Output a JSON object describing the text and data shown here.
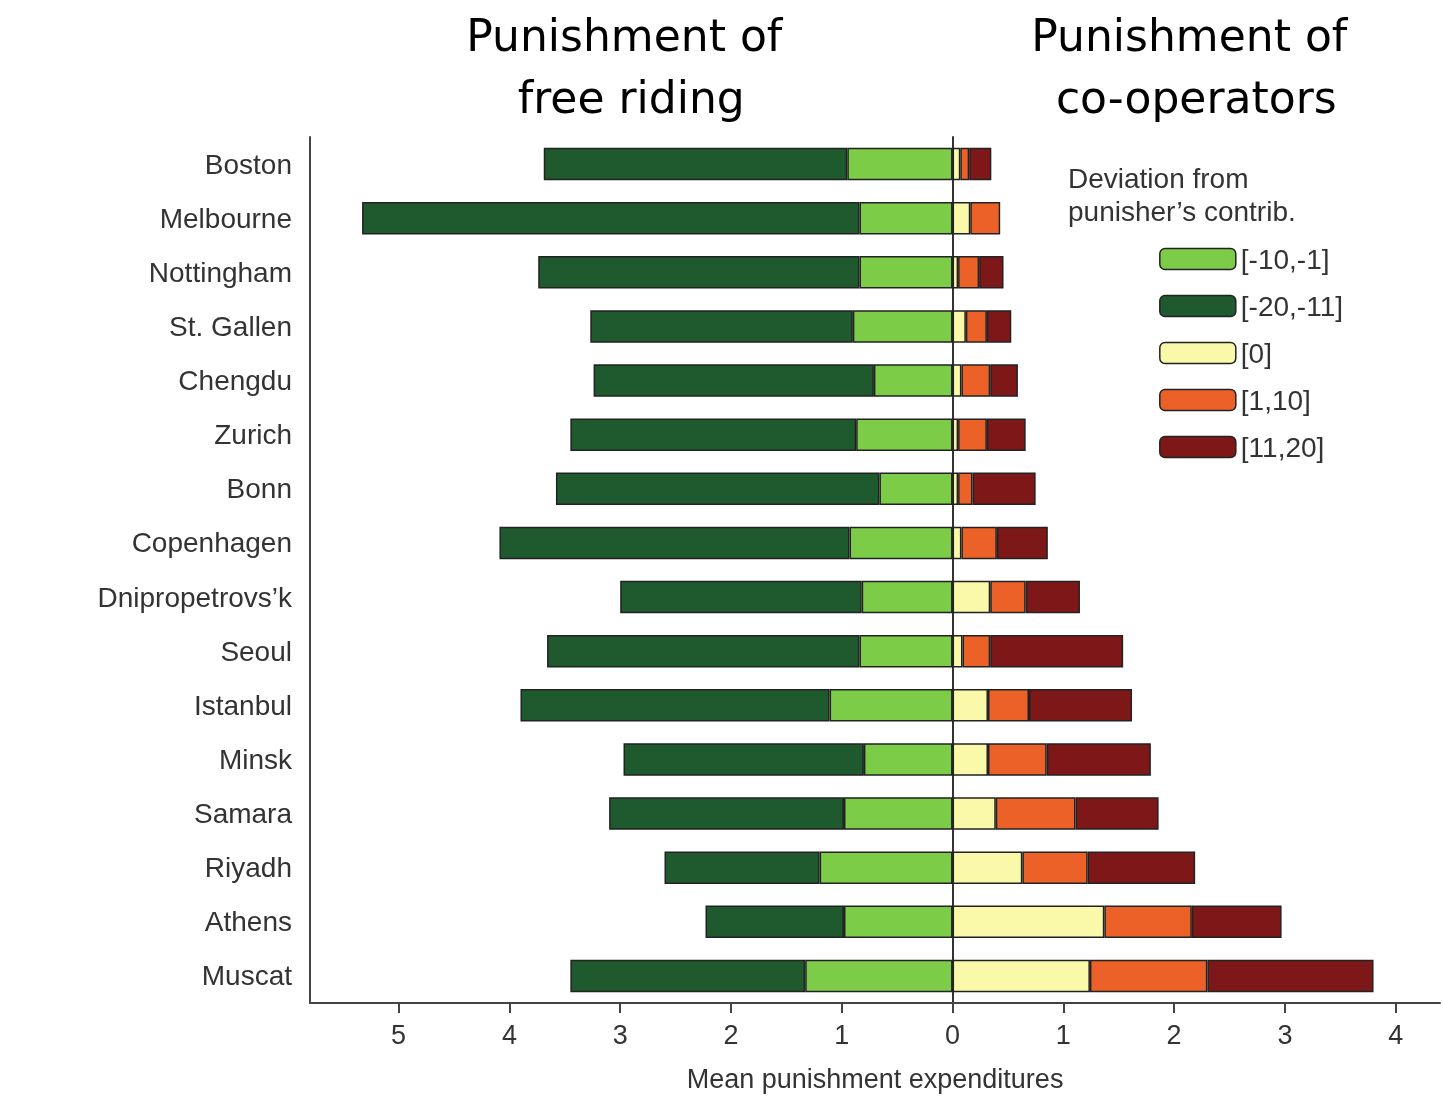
{
  "chart_data": {
    "type": "bar",
    "orientation": "horizontal",
    "stacked": true,
    "annotations": [
      "Punishment of free riding",
      "Punishment of co-operators"
    ],
    "xlabel": "Mean punishment expenditures",
    "legend_title": "Deviation from punisher’s contrib.",
    "legend": "top right",
    "categories": [
      "Boston",
      "Melbourne",
      "Nottingham",
      "St. Gallen",
      "Chengdu",
      "Zurich",
      "Bonn",
      "Copenhagen",
      "Dnipropetrovs’k",
      "Seoul",
      "Istanbul",
      "Minsk",
      "Samara",
      "Riyadh",
      "Athens",
      "Muscat"
    ],
    "xlim": [
      -5.8,
      4.4
    ],
    "xticks": [
      {
        "value": -5,
        "label": "5"
      },
      {
        "value": -4,
        "label": "4"
      },
      {
        "value": -3,
        "label": "3"
      },
      {
        "value": -2,
        "label": "2"
      },
      {
        "value": -1,
        "label": "1"
      },
      0,
      1,
      2,
      3,
      4
    ],
    "series": [
      {
        "name": "[-10,-1]",
        "color": "#7ccc48",
        "values": [
          -0.95,
          -0.84,
          -0.84,
          -0.9,
          -0.71,
          -0.87,
          -0.66,
          -0.93,
          -0.82,
          -0.84,
          -1.11,
          -0.8,
          -0.98,
          -1.2,
          -0.98,
          -1.33
        ]
      },
      {
        "name": "[-20,-11]",
        "color": "#1e5a2e",
        "values": [
          -2.74,
          -4.49,
          -2.9,
          -2.37,
          -2.53,
          -2.58,
          -2.92,
          -3.16,
          -2.18,
          -2.82,
          -2.79,
          -2.17,
          -2.12,
          -1.4,
          -1.25,
          -2.12
        ]
      },
      {
        "name": "[0]",
        "color": "#f9f9a9",
        "values": [
          0.07,
          0.16,
          0.05,
          0.12,
          0.08,
          0.05,
          0.05,
          0.08,
          0.34,
          0.09,
          0.32,
          0.32,
          0.39,
          0.63,
          1.37,
          1.24
        ]
      },
      {
        "name": "[1,10]",
        "color": "#ec6128",
        "values": [
          0.08,
          0.27,
          0.19,
          0.19,
          0.26,
          0.26,
          0.13,
          0.32,
          0.32,
          0.25,
          0.37,
          0.53,
          0.72,
          0.59,
          0.79,
          1.06
        ]
      },
      {
        "name": "[11,20]",
        "color": "#7e1818",
        "values": [
          0.2,
          null,
          0.22,
          0.22,
          0.25,
          0.35,
          0.57,
          0.46,
          0.49,
          1.2,
          0.93,
          0.94,
          0.75,
          0.97,
          0.81,
          1.5
        ]
      }
    ]
  }
}
